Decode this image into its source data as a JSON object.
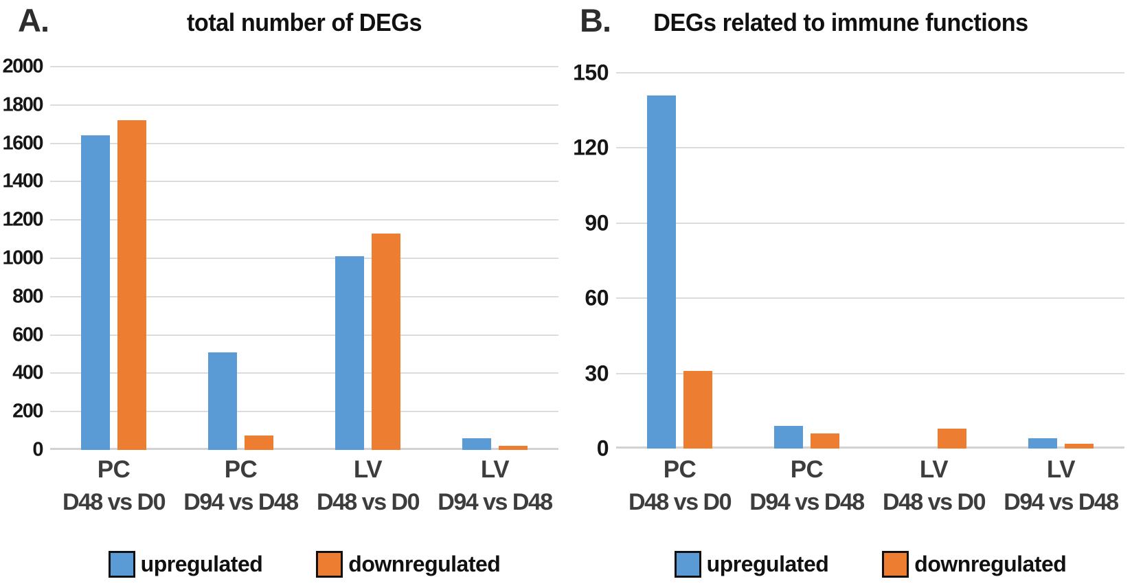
{
  "panels": [
    {
      "letter": "A.",
      "title": "total number of DEGs"
    },
    {
      "letter": "B.",
      "title": "DEGs related to immune functions"
    }
  ],
  "colors": {
    "upregulated": "#5B9BD5",
    "downregulated": "#ED7D31",
    "gridline": "#DCDCDC",
    "tick_text": "#161616",
    "category_text": "#3D3D3D"
  },
  "legend": {
    "position": "bottom",
    "items": [
      {
        "label": "upregulated",
        "color": "#5B9BD5"
      },
      {
        "label": "downregulated",
        "color": "#ED7D31"
      }
    ]
  },
  "chart_data": [
    {
      "type": "bar",
      "panel": "A",
      "title": "total number of DEGs",
      "categories": [
        {
          "line1": "PC",
          "line2": "D48 vs D0"
        },
        {
          "line1": "PC",
          "line2": "D94 vs D48"
        },
        {
          "line1": "LV",
          "line2": "D48 vs D0"
        },
        {
          "line1": "LV",
          "line2": "D94 vs D48"
        }
      ],
      "series": [
        {
          "name": "upregulated",
          "color": "#5B9BD5",
          "values": [
            1640,
            510,
            1010,
            60
          ]
        },
        {
          "name": "downregulated",
          "color": "#ED7D31",
          "values": [
            1720,
            75,
            1130,
            20
          ]
        }
      ],
      "ylim": [
        0,
        2000
      ],
      "yticks": [
        2000,
        1800,
        1600,
        1400,
        1200,
        1000,
        800,
        600,
        400,
        200,
        0
      ],
      "grid": true,
      "legend_position": "bottom"
    },
    {
      "type": "bar",
      "panel": "B",
      "title": "DEGs related to immune functions",
      "categories": [
        {
          "line1": "PC",
          "line2": "D48 vs D0"
        },
        {
          "line1": "PC",
          "line2": "D94 vs D48"
        },
        {
          "line1": "LV",
          "line2": "D48 vs D0"
        },
        {
          "line1": "LV",
          "line2": "D94 vs D48"
        }
      ],
      "series": [
        {
          "name": "upregulated",
          "color": "#5B9BD5",
          "values": [
            141,
            9,
            0,
            4
          ]
        },
        {
          "name": "downregulated",
          "color": "#ED7D31",
          "values": [
            31,
            6,
            8,
            2
          ]
        }
      ],
      "ylim": [
        0,
        150
      ],
      "yticks": [
        150,
        120,
        90,
        60,
        30,
        0
      ],
      "grid": true,
      "legend_position": "bottom"
    }
  ]
}
